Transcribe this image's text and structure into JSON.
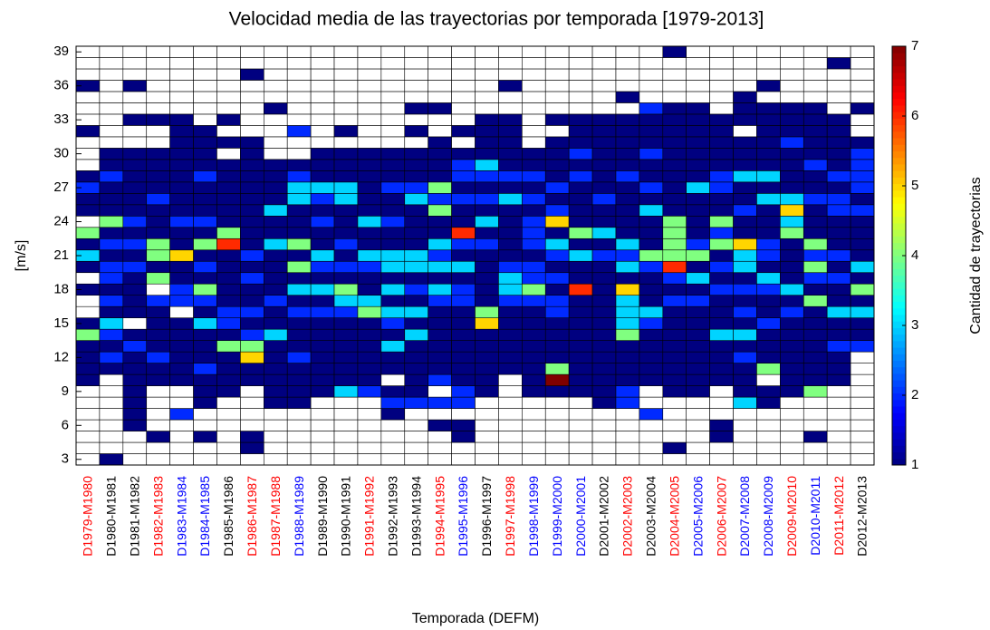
{
  "chart_data": {
    "type": "heatmap",
    "title": "Velocidad media de las trayectorias por temporada [1979-2013]",
    "xlabel": "Temporada (DEFM)",
    "ylabel": "[m/s]",
    "categories": [
      "D1979-M1980",
      "D1980-M1981",
      "D1981-M1982",
      "D1982-M1983",
      "D1983-M1984",
      "D1984-M1985",
      "D1985-M1986",
      "D1986-M1987",
      "D1987-M1988",
      "D1988-M1989",
      "D1989-M1990",
      "D1990-M1991",
      "D1991-M1992",
      "D1992-M1993",
      "D1993-M1994",
      "D1994-M1995",
      "D1995-M1996",
      "D1996-M1997",
      "D1997-M1998",
      "D1998-M1999",
      "D1999-M2000",
      "D2000-M2001",
      "D2001-M2002",
      "D2002-M2003",
      "D2003-M2004",
      "D2004-M2005",
      "D2005-M2006",
      "D2006-M2007",
      "D2007-M2008",
      "D2008-M2009",
      "D2009-M2010",
      "D2010-M2011",
      "D2011-M2012",
      "D2012-M2013"
    ],
    "category_colors": [
      "#ff0000",
      "#000000",
      "#000000",
      "#ff0000",
      "#0000ff",
      "#0000ff",
      "#000000",
      "#ff0000",
      "#ff0000",
      "#0000ff",
      "#000000",
      "#000000",
      "#ff0000",
      "#000000",
      "#000000",
      "#ff0000",
      "#0000ff",
      "#000000",
      "#ff0000",
      "#0000ff",
      "#0000ff",
      "#0000ff",
      "#000000",
      "#ff0000",
      "#000000",
      "#ff0000",
      "#0000ff",
      "#ff0000",
      "#0000ff",
      "#0000ff",
      "#ff0000",
      "#0000ff",
      "#ff0000",
      "#000000"
    ],
    "y": [
      3,
      4,
      5,
      6,
      7,
      8,
      9,
      10,
      11,
      12,
      13,
      14,
      15,
      16,
      17,
      18,
      19,
      20,
      21,
      22,
      23,
      24,
      25,
      26,
      27,
      28,
      29,
      30,
      31,
      32,
      33,
      34,
      35,
      36,
      37,
      38,
      39
    ],
    "ylim": [
      2.5,
      39.5
    ],
    "yticks": [
      3,
      6,
      9,
      12,
      15,
      18,
      21,
      24,
      27,
      30,
      33,
      36,
      39
    ],
    "values": [
      [
        0,
        0,
        0,
        0,
        0,
        0,
        0,
        1,
        1,
        1,
        1,
        4,
        1,
        0,
        0,
        1,
        0,
        1,
        3,
        1,
        4,
        0,
        1,
        1,
        2,
        1,
        0,
        0,
        0,
        1,
        0,
        0,
        0,
        1,
        0,
        0,
        0
      ],
      [
        1,
        0,
        0,
        0,
        0,
        0,
        0,
        0,
        1,
        2,
        1,
        2,
        3,
        1,
        2,
        1,
        2,
        2,
        1,
        2,
        1,
        4,
        1,
        1,
        1,
        2,
        1,
        1,
        0,
        0,
        0,
        0,
        0,
        0,
        0,
        0,
        0
      ],
      [
        0,
        0,
        0,
        1,
        1,
        1,
        1,
        1,
        1,
        1,
        2,
        1,
        0,
        1,
        1,
        1,
        1,
        2,
        1,
        2,
        1,
        2,
        1,
        1,
        1,
        1,
        1,
        1,
        0,
        0,
        1,
        0,
        0,
        1,
        0,
        0,
        0
      ],
      [
        0,
        0,
        1,
        0,
        0,
        0,
        0,
        1,
        1,
        2,
        1,
        1,
        1,
        1,
        2,
        0,
        4,
        1,
        4,
        4,
        1,
        1,
        1,
        2,
        1,
        1,
        1,
        1,
        0,
        0,
        1,
        0,
        0,
        0,
        0,
        0,
        0
      ],
      [
        0,
        0,
        0,
        0,
        2,
        0,
        0,
        1,
        1,
        1,
        1,
        1,
        1,
        0,
        2,
        2,
        1,
        1,
        5,
        1,
        1,
        2,
        1,
        1,
        1,
        1,
        1,
        1,
        1,
        1,
        1,
        0,
        0,
        0,
        0,
        0,
        0
      ],
      [
        0,
        0,
        1,
        0,
        0,
        1,
        1,
        1,
        2,
        1,
        1,
        1,
        3,
        1,
        2,
        4,
        1,
        2,
        1,
        4,
        1,
        2,
        1,
        1,
        1,
        2,
        1,
        1,
        1,
        1,
        0,
        0,
        0,
        0,
        0,
        0,
        0
      ],
      [
        0,
        0,
        0,
        0,
        0,
        0,
        1,
        1,
        1,
        1,
        4,
        1,
        2,
        2,
        1,
        1,
        1,
        1,
        1,
        6,
        4,
        1,
        1,
        1,
        1,
        1,
        1,
        0,
        1,
        0,
        1,
        0,
        0,
        0,
        0,
        0,
        0
      ],
      [
        0,
        1,
        1,
        0,
        0,
        0,
        0,
        1,
        1,
        5,
        4,
        2,
        1,
        2,
        1,
        1,
        2,
        1,
        2,
        1,
        1,
        1,
        1,
        1,
        1,
        1,
        1,
        1,
        1,
        0,
        0,
        0,
        0,
        0,
        1,
        0,
        0
      ],
      [
        0,
        0,
        0,
        0,
        0,
        1,
        1,
        1,
        1,
        1,
        1,
        3,
        1,
        1,
        2,
        1,
        1,
        1,
        1,
        3,
        1,
        1,
        3,
        1,
        1,
        1,
        1,
        0,
        0,
        0,
        0,
        1,
        0,
        0,
        0,
        0,
        0
      ],
      [
        0,
        0,
        0,
        0,
        0,
        1,
        1,
        1,
        1,
        2,
        1,
        1,
        1,
        2,
        1,
        3,
        1,
        4,
        1,
        4,
        1,
        1,
        1,
        3,
        3,
        2,
        1,
        0,
        0,
        2,
        0,
        0,
        0,
        0,
        0,
        0,
        0
      ],
      [
        0,
        0,
        0,
        0,
        0,
        0,
        1,
        1,
        1,
        1,
        1,
        1,
        1,
        2,
        1,
        3,
        1,
        2,
        3,
        1,
        1,
        2,
        1,
        2,
        3,
        1,
        1,
        1,
        0,
        0,
        0,
        0,
        0,
        0,
        0,
        0,
        0
      ],
      [
        0,
        0,
        0,
        0,
        0,
        0,
        3,
        1,
        1,
        1,
        1,
        1,
        1,
        2,
        3,
        4,
        1,
        2,
        1,
        2,
        1,
        1,
        1,
        3,
        3,
        1,
        1,
        1,
        0,
        1,
        0,
        0,
        0,
        0,
        0,
        0,
        0
      ],
      [
        0,
        0,
        0,
        0,
        0,
        0,
        2,
        1,
        1,
        1,
        1,
        1,
        1,
        4,
        3,
        1,
        1,
        2,
        3,
        1,
        1,
        3,
        1,
        1,
        1,
        1,
        1,
        1,
        0,
        0,
        0,
        0,
        0,
        0,
        0,
        0,
        0
      ],
      [
        0,
        0,
        0,
        0,
        1,
        2,
        1,
        0,
        1,
        1,
        3,
        1,
        2,
        3,
        1,
        3,
        1,
        3,
        3,
        1,
        1,
        2,
        1,
        1,
        2,
        1,
        1,
        1,
        0,
        0,
        0,
        0,
        0,
        0,
        0,
        0,
        0
      ],
      [
        0,
        0,
        0,
        0,
        0,
        2,
        1,
        1,
        1,
        1,
        1,
        3,
        1,
        3,
        1,
        2,
        1,
        3,
        3,
        1,
        1,
        1,
        1,
        3,
        2,
        1,
        1,
        1,
        0,
        1,
        0,
        1,
        0,
        0,
        0,
        0,
        0
      ],
      [
        0,
        0,
        0,
        1,
        0,
        2,
        0,
        2,
        1,
        1,
        1,
        1,
        1,
        1,
        2,
        3,
        1,
        3,
        2,
        3,
        1,
        1,
        4,
        2,
        4,
        1,
        1,
        1,
        1,
        0,
        0,
        1,
        0,
        0,
        0,
        0,
        0
      ],
      [
        0,
        0,
        1,
        1,
        0,
        2,
        2,
        1,
        1,
        1,
        1,
        1,
        1,
        1,
        2,
        2,
        1,
        3,
        1,
        2,
        6,
        1,
        1,
        2,
        1,
        2,
        2,
        1,
        0,
        1,
        0,
        0,
        0,
        0,
        0,
        0,
        0
      ],
      [
        0,
        0,
        0,
        0,
        0,
        0,
        1,
        1,
        1,
        1,
        1,
        1,
        5,
        4,
        1,
        1,
        1,
        1,
        1,
        2,
        1,
        3,
        1,
        2,
        1,
        2,
        3,
        1,
        1,
        1,
        1,
        0,
        0,
        0,
        0,
        0,
        0
      ],
      [
        0,
        0,
        0,
        0,
        0,
        0,
        0,
        0,
        1,
        1,
        1,
        1,
        1,
        1,
        2,
        3,
        3,
        2,
        1,
        1,
        1,
        1,
        1,
        3,
        1,
        2,
        1,
        1,
        1,
        1,
        1,
        0,
        0,
        1,
        0,
        0,
        0
      ],
      [
        0,
        0,
        0,
        0,
        0,
        0,
        1,
        1,
        1,
        1,
        1,
        1,
        1,
        1,
        2,
        4,
        2,
        2,
        1,
        2,
        2,
        2,
        1,
        2,
        1,
        2,
        1,
        1,
        0,
        0,
        0,
        0,
        0,
        0,
        0,
        0,
        0
      ],
      [
        0,
        0,
        0,
        0,
        0,
        0,
        1,
        7,
        4,
        1,
        1,
        1,
        1,
        2,
        2,
        1,
        2,
        1,
        2,
        3,
        1,
        5,
        2,
        1,
        2,
        1,
        1,
        1,
        1,
        0,
        1,
        0,
        0,
        0,
        0,
        0,
        0
      ],
      [
        0,
        0,
        0,
        0,
        0,
        0,
        1,
        1,
        1,
        1,
        1,
        1,
        1,
        1,
        1,
        6,
        1,
        1,
        3,
        1,
        4,
        1,
        1,
        1,
        1,
        2,
        1,
        2,
        1,
        1,
        1,
        0,
        0,
        0,
        0,
        0,
        0
      ],
      [
        0,
        0,
        0,
        0,
        0,
        1,
        1,
        1,
        1,
        1,
        1,
        1,
        1,
        1,
        1,
        1,
        1,
        1,
        2,
        1,
        3,
        1,
        1,
        2,
        1,
        1,
        1,
        1,
        1,
        1,
        1,
        0,
        0,
        0,
        0,
        0,
        0
      ],
      [
        0,
        0,
        0,
        0,
        0,
        2,
        2,
        1,
        1,
        1,
        1,
        4,
        3,
        3,
        3,
        5,
        1,
        3,
        2,
        3,
        1,
        1,
        1,
        1,
        1,
        2,
        1,
        1,
        1,
        1,
        1,
        0,
        1,
        0,
        0,
        0,
        0
      ],
      [
        0,
        0,
        0,
        0,
        2,
        0,
        0,
        1,
        1,
        1,
        1,
        1,
        2,
        3,
        1,
        1,
        1,
        2,
        4,
        1,
        1,
        1,
        3,
        1,
        2,
        1,
        1,
        2,
        1,
        1,
        1,
        2,
        0,
        0,
        0,
        0,
        0
      ],
      [
        0,
        1,
        0,
        0,
        0,
        0,
        1,
        1,
        1,
        1,
        1,
        1,
        1,
        1,
        2,
        1,
        2,
        6,
        4,
        4,
        4,
        4,
        1,
        1,
        1,
        1,
        1,
        1,
        1,
        1,
        1,
        1,
        0,
        0,
        0,
        0,
        1
      ],
      [
        0,
        0,
        0,
        0,
        0,
        0,
        1,
        1,
        1,
        1,
        1,
        1,
        1,
        1,
        2,
        1,
        3,
        1,
        4,
        2,
        1,
        1,
        1,
        1,
        3,
        1,
        1,
        1,
        1,
        1,
        1,
        1,
        0,
        0,
        0,
        0,
        0
      ],
      [
        0,
        0,
        1,
        1,
        0,
        0,
        0,
        1,
        1,
        1,
        1,
        3,
        1,
        1,
        1,
        2,
        1,
        2,
        1,
        4,
        2,
        4,
        1,
        1,
        2,
        2,
        1,
        1,
        1,
        1,
        1,
        0,
        0,
        0,
        0,
        0,
        0
      ],
      [
        0,
        0,
        0,
        0,
        0,
        3,
        1,
        1,
        1,
        2,
        1,
        3,
        1,
        2,
        1,
        2,
        1,
        3,
        3,
        5,
        1,
        1,
        2,
        1,
        1,
        3,
        1,
        1,
        1,
        0,
        1,
        1,
        1,
        0,
        0,
        0,
        0
      ],
      [
        0,
        0,
        0,
        0,
        0,
        1,
        1,
        0,
        4,
        1,
        1,
        1,
        2,
        1,
        1,
        2,
        3,
        1,
        2,
        2,
        1,
        1,
        1,
        3,
        1,
        3,
        1,
        1,
        1,
        1,
        1,
        1,
        0,
        1,
        0,
        0,
        0
      ],
      [
        0,
        0,
        0,
        0,
        0,
        0,
        1,
        1,
        1,
        1,
        1,
        1,
        1,
        2,
        1,
        3,
        1,
        1,
        1,
        1,
        4,
        3,
        5,
        3,
        1,
        1,
        1,
        1,
        2,
        1,
        1,
        1,
        0,
        0,
        0,
        0,
        0
      ],
      [
        0,
        0,
        1,
        0,
        0,
        0,
        4,
        1,
        1,
        1,
        1,
        1,
        1,
        1,
        4,
        1,
        2,
        4,
        2,
        4,
        1,
        1,
        1,
        2,
        1,
        1,
        2,
        1,
        1,
        1,
        1,
        1,
        0,
        0,
        0,
        0,
        0
      ],
      [
        0,
        0,
        0,
        0,
        0,
        0,
        0,
        1,
        1,
        1,
        2,
        1,
        1,
        3,
        1,
        1,
        2,
        1,
        2,
        1,
        1,
        1,
        2,
        2,
        1,
        2,
        1,
        1,
        1,
        1,
        1,
        0,
        0,
        0,
        0,
        1,
        0
      ],
      [
        0,
        0,
        0,
        0,
        0,
        0,
        0,
        0,
        0,
        0,
        2,
        1,
        1,
        3,
        1,
        4,
        1,
        3,
        1,
        1,
        1,
        1,
        2,
        1,
        2,
        2,
        2,
        2,
        1,
        0,
        0,
        1,
        0,
        0,
        0,
        0,
        0
      ]
    ],
    "clim": [
      1,
      7
    ],
    "cticks": [
      1,
      2,
      3,
      4,
      5,
      6,
      7
    ],
    "colorbar_label": "Cantidad de trayectorias",
    "colormap": "jet",
    "empty_color": "#ffffff",
    "grid": true
  }
}
